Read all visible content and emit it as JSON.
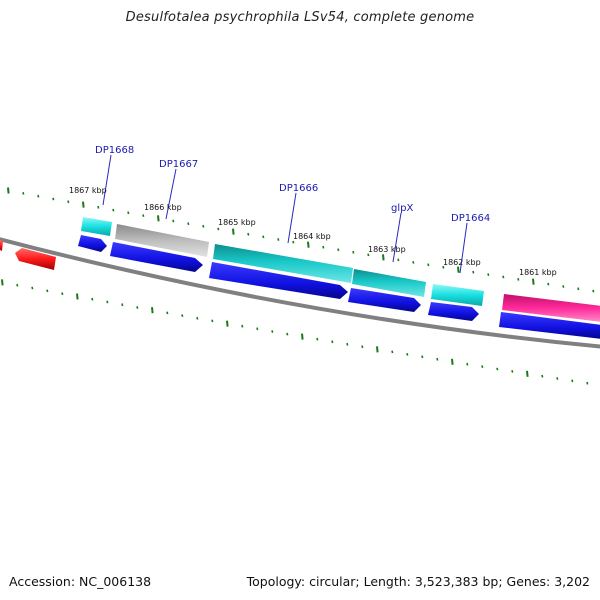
{
  "title": "Desulfotalea psychrophila LSv54, complete genome",
  "accession": "Accession: NC_006138",
  "summary": "Topology: circular; Length: 3,523,383 bp; Genes: 3,202",
  "colors": {
    "blue": "#1010e0",
    "cyan": "#19d6d6",
    "teal": "#12b4b4",
    "gray": "#b4b4b4",
    "red": "#ff1a1a",
    "pink": "#ff2a9a",
    "tick": "#1a7a1a",
    "label": "#1a1ab0",
    "backbone": "#808080"
  },
  "kbp_labels": [
    "1867 kbp",
    "1866 kbp",
    "1865 kbp",
    "1864 kbp",
    "1863 kbp",
    "1862 kbp",
    "1861 kbp"
  ],
  "gene_labels": [
    "DP1668",
    "DP1667",
    "DP1666",
    "glpX",
    "DP1664"
  ]
}
